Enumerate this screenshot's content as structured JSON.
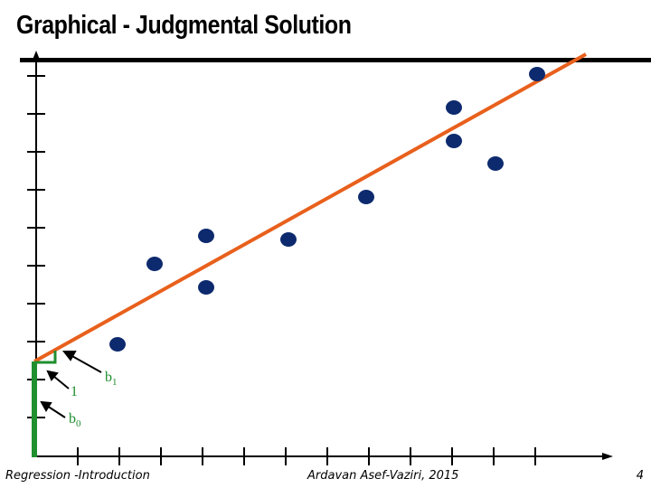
{
  "slide": {
    "title": "Graphical - Judgmental Solution",
    "footer_left": "Regression -Introduction",
    "footer_center": "Ardavan Asef-Vaziri, 2015",
    "page_number": "4"
  },
  "diagram": {
    "slope_run_label": "1",
    "slope_label": "b",
    "slope_subscript": "1",
    "intercept_label": "b",
    "intercept_subscript": "0",
    "colors": {
      "regression_line": "#e8601c",
      "points": "#0d2a6e",
      "annotation": "#1f8f2f",
      "axes": "#000000"
    }
  }
}
